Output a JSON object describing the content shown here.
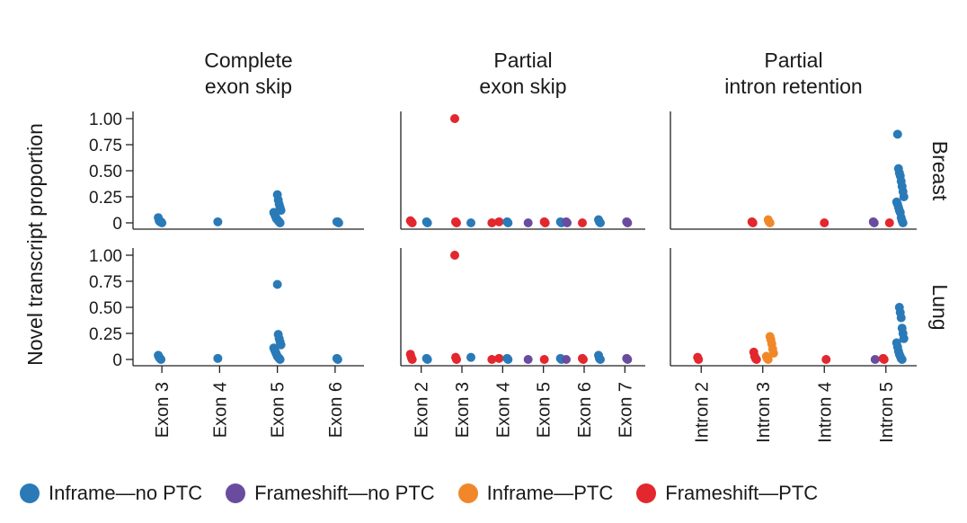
{
  "colors": {
    "inframe_no_ptc": "#2a7ab8",
    "frameshift_no_ptc": "#6a4c9f",
    "inframe_ptc": "#f0882a",
    "frameshift_ptc": "#e2272e"
  },
  "legend": [
    {
      "label": "Inframe—no PTC",
      "color": "#2a7ab8"
    },
    {
      "label": "Frameshift—no PTC",
      "color": "#6a4c9f"
    },
    {
      "label": "Inframe—PTC",
      "color": "#f0882a"
    },
    {
      "label": "Frameshift—PTC",
      "color": "#e2272e"
    }
  ],
  "chart_data": {
    "type": "scatter",
    "ylabel": "Novel transcript proportion",
    "ylim": [
      0,
      1.0
    ],
    "yticks": [
      1.0,
      0.75,
      0.5,
      0.25,
      0
    ],
    "ytick_labels": [
      "1.00",
      "0.75",
      "0.50",
      "0.25",
      "0"
    ],
    "rows": [
      "Breast",
      "Lung"
    ],
    "columns": [
      {
        "title_lines": [
          "Complete",
          "exon skip"
        ],
        "categories": [
          "Exon 3",
          "Exon 4",
          "Exon 5",
          "Exon 6"
        ]
      },
      {
        "title_lines": [
          "Partial",
          "exon skip"
        ],
        "categories": [
          "Exon 2",
          "Exon 3",
          "Exon 4",
          "Exon 5",
          "Exon 6",
          "Exon 7"
        ]
      },
      {
        "title_lines": [
          "Partial",
          "intron retention"
        ],
        "categories": [
          "Intron 2",
          "Intron 3",
          "Intron 4",
          "Intron 5"
        ]
      }
    ],
    "panels": [
      {
        "row": "Breast",
        "col": 0,
        "groups": [
          {
            "category": "Exon 3",
            "type": "inframe_no_ptc",
            "values": [
              0.05,
              0.02,
              0.01,
              0.01,
              0
            ]
          },
          {
            "category": "Exon 4",
            "type": "inframe_no_ptc",
            "values": [
              0.01
            ]
          },
          {
            "category": "Exon 5",
            "type": "inframe_no_ptc",
            "values": [
              0.27,
              0.22,
              0.18,
              0.15,
              0.12,
              0.1,
              0.08,
              0.06,
              0.04,
              0.03,
              0.02,
              0.01,
              0
            ]
          },
          {
            "category": "Exon 6",
            "type": "inframe_no_ptc",
            "values": [
              0.01,
              0.01,
              0
            ]
          }
        ]
      },
      {
        "row": "Breast",
        "col": 1,
        "groups": [
          {
            "category": "Exon 2",
            "type": "frameshift_ptc",
            "values": [
              0.02,
              0.01,
              0
            ]
          },
          {
            "category": "Exon 2",
            "type": "inframe_no_ptc",
            "values": [
              0.01,
              0
            ]
          },
          {
            "category": "Exon 3",
            "type": "frameshift_ptc",
            "values": [
              1.0,
              0.01,
              0
            ]
          },
          {
            "category": "Exon 3",
            "type": "inframe_no_ptc",
            "values": [
              0
            ]
          },
          {
            "category": "Exon 4",
            "type": "frameshift_ptc",
            "values": [
              0.01,
              0
            ]
          },
          {
            "category": "Exon 4",
            "type": "inframe_no_ptc",
            "values": [
              0.01,
              0
            ]
          },
          {
            "category": "Exon 5",
            "type": "frameshift_no_ptc",
            "values": [
              0
            ]
          },
          {
            "category": "Exon 5",
            "type": "frameshift_ptc",
            "values": [
              0.01,
              0
            ]
          },
          {
            "category": "Exon 5",
            "type": "inframe_no_ptc",
            "values": [
              0.01,
              0
            ]
          },
          {
            "category": "Exon 6",
            "type": "frameshift_no_ptc",
            "values": [
              0.01,
              0
            ]
          },
          {
            "category": "Exon 6",
            "type": "frameshift_ptc",
            "values": [
              0
            ]
          },
          {
            "category": "Exon 6",
            "type": "inframe_no_ptc",
            "values": [
              0.03,
              0.01,
              0
            ]
          },
          {
            "category": "Exon 7",
            "type": "frameshift_no_ptc",
            "values": [
              0.01,
              0
            ]
          }
        ]
      },
      {
        "row": "Breast",
        "col": 2,
        "groups": [
          {
            "category": "Intron 3",
            "type": "frameshift_ptc",
            "values": [
              0.01,
              0
            ]
          },
          {
            "category": "Intron 3",
            "type": "inframe_ptc",
            "values": [
              0.03,
              0.01,
              0
            ]
          },
          {
            "category": "Intron 4",
            "type": "frameshift_ptc",
            "values": [
              0
            ]
          },
          {
            "category": "Intron 5",
            "type": "frameshift_no_ptc",
            "values": [
              0.01,
              0
            ]
          },
          {
            "category": "Intron 5",
            "type": "frameshift_ptc",
            "values": [
              0
            ]
          },
          {
            "category": "Intron 5",
            "type": "inframe_no_ptc",
            "values": [
              0.85,
              0.52,
              0.48,
              0.45,
              0.4,
              0.35,
              0.3,
              0.25,
              0.2,
              0.18,
              0.15,
              0.12,
              0.1,
              0.05,
              0.02,
              0
            ]
          }
        ]
      },
      {
        "row": "Lung",
        "col": 0,
        "groups": [
          {
            "category": "Exon 3",
            "type": "inframe_no_ptc",
            "values": [
              0.04,
              0.02,
              0.01,
              0
            ]
          },
          {
            "category": "Exon 4",
            "type": "inframe_no_ptc",
            "values": [
              0.01
            ]
          },
          {
            "category": "Exon 5",
            "type": "inframe_no_ptc",
            "values": [
              0.72,
              0.24,
              0.2,
              0.17,
              0.14,
              0.11,
              0.09,
              0.07,
              0.05,
              0.03,
              0.02,
              0.01,
              0
            ]
          },
          {
            "category": "Exon 6",
            "type": "inframe_no_ptc",
            "values": [
              0.01,
              0
            ]
          }
        ]
      },
      {
        "row": "Lung",
        "col": 1,
        "groups": [
          {
            "category": "Exon 2",
            "type": "frameshift_ptc",
            "values": [
              0.05,
              0.02,
              0
            ]
          },
          {
            "category": "Exon 2",
            "type": "inframe_no_ptc",
            "values": [
              0.01,
              0
            ]
          },
          {
            "category": "Exon 3",
            "type": "frameshift_ptc",
            "values": [
              1.0,
              0.02,
              0
            ]
          },
          {
            "category": "Exon 3",
            "type": "inframe_no_ptc",
            "values": [
              0.02
            ]
          },
          {
            "category": "Exon 4",
            "type": "frameshift_ptc",
            "values": [
              0.01,
              0
            ]
          },
          {
            "category": "Exon 4",
            "type": "inframe_no_ptc",
            "values": [
              0.01,
              0
            ]
          },
          {
            "category": "Exon 5",
            "type": "frameshift_no_ptc",
            "values": [
              0
            ]
          },
          {
            "category": "Exon 5",
            "type": "frameshift_ptc",
            "values": [
              0
            ]
          },
          {
            "category": "Exon 5",
            "type": "inframe_no_ptc",
            "values": [
              0.01,
              0
            ]
          },
          {
            "category": "Exon 6",
            "type": "frameshift_no_ptc",
            "values": [
              0
            ]
          },
          {
            "category": "Exon 6",
            "type": "frameshift_ptc",
            "values": [
              0.01,
              0
            ]
          },
          {
            "category": "Exon 6",
            "type": "inframe_no_ptc",
            "values": [
              0.04,
              0.01,
              0
            ]
          },
          {
            "category": "Exon 7",
            "type": "frameshift_no_ptc",
            "values": [
              0.01,
              0
            ]
          }
        ]
      },
      {
        "row": "Lung",
        "col": 2,
        "groups": [
          {
            "category": "Intron 2",
            "type": "frameshift_ptc",
            "values": [
              0.02,
              0
            ]
          },
          {
            "category": "Intron 3",
            "type": "frameshift_ptc",
            "values": [
              0.07,
              0.03,
              0.01,
              0
            ]
          },
          {
            "category": "Intron 3",
            "type": "inframe_ptc",
            "values": [
              0.22,
              0.19,
              0.15,
              0.1,
              0.06,
              0.03,
              0.01,
              0
            ]
          },
          {
            "category": "Intron 4",
            "type": "frameshift_ptc",
            "values": [
              0
            ]
          },
          {
            "category": "Intron 5",
            "type": "frameshift_no_ptc",
            "values": [
              0
            ]
          },
          {
            "category": "Intron 5",
            "type": "frameshift_ptc",
            "values": [
              0.01,
              0
            ]
          },
          {
            "category": "Intron 5",
            "type": "inframe_no_ptc",
            "values": [
              0.5,
              0.45,
              0.4,
              0.3,
              0.25,
              0.2,
              0.16,
              0.12,
              0.08,
              0.05,
              0.03,
              0.01,
              0
            ]
          }
        ]
      }
    ]
  }
}
